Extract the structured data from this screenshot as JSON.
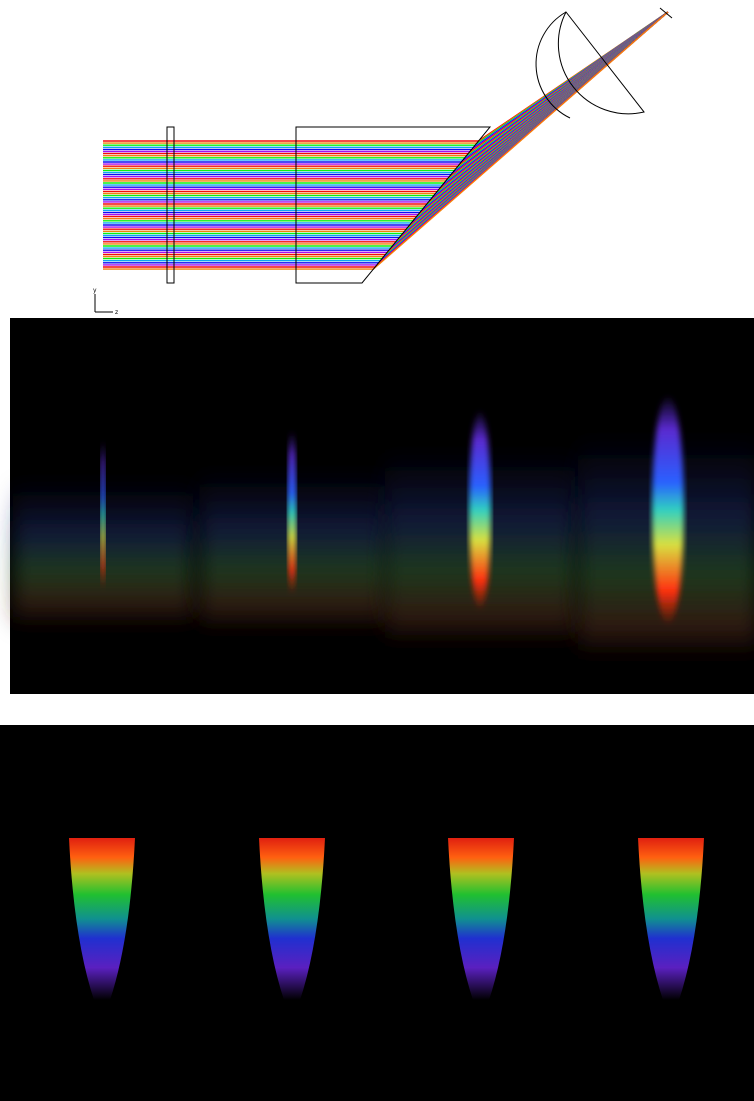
{
  "axes": {
    "vertical": "y",
    "horizontal": "z"
  }
}
